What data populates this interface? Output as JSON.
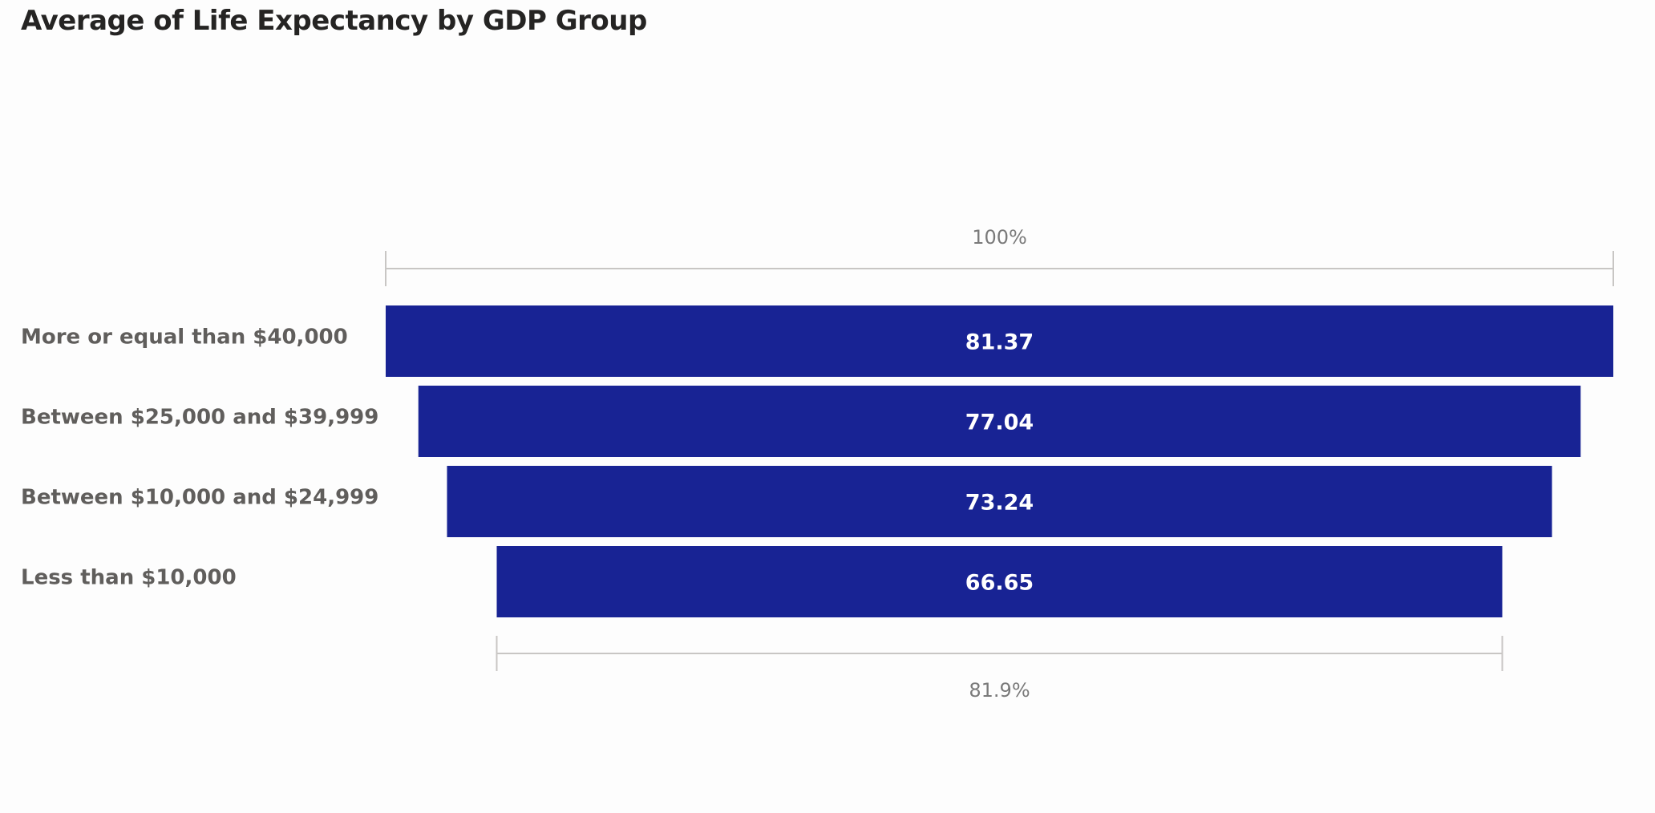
{
  "chart_data": {
    "type": "bar",
    "subtype": "funnel",
    "title": "Average of Life Expectancy by GDP Group",
    "categories": [
      "More or equal than $40,000",
      "Between $25,000 and $39,999",
      "Between $10,000 and $24,999",
      "Less than $10,000"
    ],
    "values": [
      81.37,
      77.04,
      73.24,
      66.65
    ],
    "value_labels": [
      "81.37",
      "77.04",
      "73.24",
      "66.65"
    ],
    "top_percent_label": "100%",
    "bottom_percent_label": "81.9%",
    "bar_color": "#182394",
    "orientation": "horizontal-centered",
    "grid": false
  }
}
